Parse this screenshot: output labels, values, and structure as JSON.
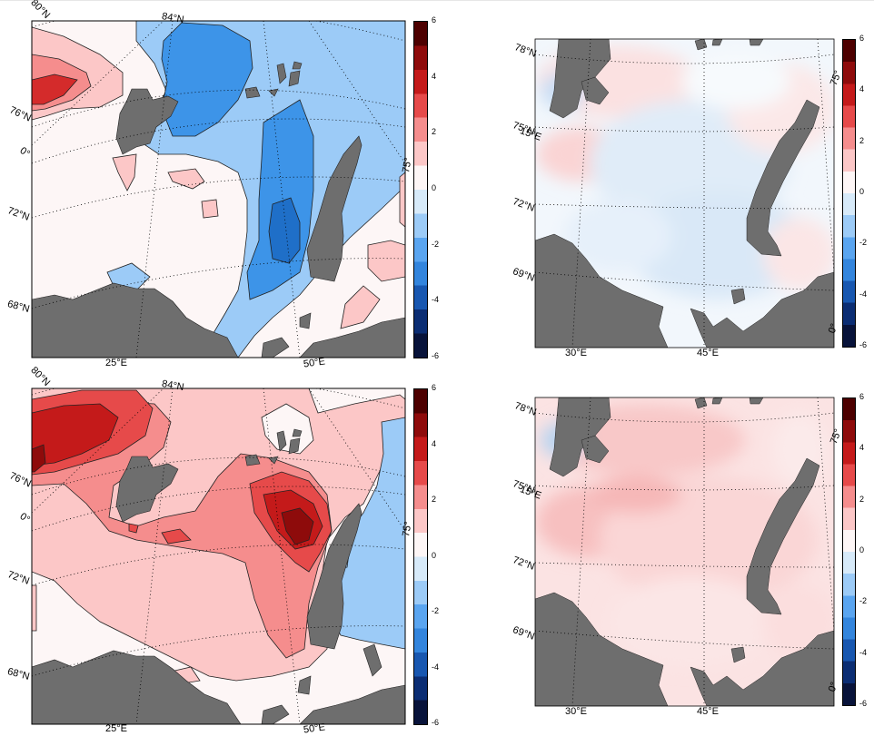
{
  "colors": {
    "land": "#6e6e6e",
    "background": "#ffffff",
    "cmap": [
      "#08133a",
      "#0b2d73",
      "#1857b0",
      "#3385dd",
      "#5aa5f0",
      "#9ccbf7",
      "#d7eaf9",
      "#fdf6f6",
      "#fcc7c7",
      "#f58d8d",
      "#e64a4a",
      "#c41a1a",
      "#8e0b0b",
      "#4d0000"
    ]
  },
  "colorbar": {
    "min": -6,
    "max": 6,
    "ticks": [
      "6",
      "4",
      "2",
      "0",
      "-2",
      "-4",
      "-6"
    ]
  },
  "panels": [
    {
      "id": "top-left",
      "style": "contour",
      "lat_labels": [
        "80°N",
        "76°N",
        "0°",
        "72°N",
        "68°N"
      ],
      "top_labels": [
        "84°N"
      ],
      "right_labels": [
        "75°"
      ],
      "lon_labels": [
        "25°E",
        "50°E"
      ]
    },
    {
      "id": "top-right",
      "style": "smooth",
      "lat_labels": [
        "78°N",
        "75°N",
        "72°N",
        "69°N"
      ],
      "overlap_label": "15°E",
      "right_labels": [
        "75°",
        "0°"
      ],
      "lon_labels": [
        "30°E",
        "45°E"
      ]
    },
    {
      "id": "bottom-left",
      "style": "contour",
      "lat_labels": [
        "80°N",
        "76°N",
        "0°",
        "72°N",
        "68°N"
      ],
      "top_labels": [
        "84°N"
      ],
      "right_labels": [
        "75°"
      ],
      "lon_labels": [
        "25°E",
        "50°E"
      ]
    },
    {
      "id": "bottom-right",
      "style": "smooth",
      "lat_labels": [
        "78°N",
        "75°N",
        "72°N",
        "69°N"
      ],
      "overlap_label": "15°E",
      "right_labels": [
        "75°",
        "0°"
      ],
      "lon_labels": [
        "30°E",
        "45°E"
      ]
    }
  ]
}
